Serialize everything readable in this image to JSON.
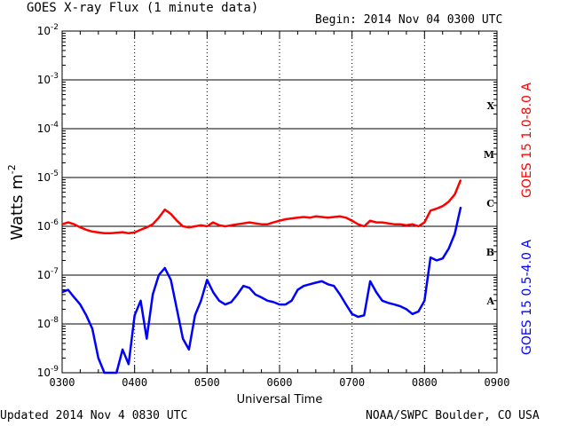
{
  "header": {
    "title": "GOES X-ray Flux (1 minute data)",
    "begin": "Begin: 2014 Nov 04 0300 UTC"
  },
  "footer": {
    "updated": "Updated 2014 Nov  4 0830 UTC",
    "credit": "NOAA/SWPC Boulder, CO USA"
  },
  "chart_data": {
    "type": "line",
    "title": "GOES X-ray Flux (1 minute data)",
    "xlabel": "Universal Time",
    "ylabel": "Watts m",
    "ylabel_sup": "-2",
    "xticks": [
      "0300",
      "0400",
      "0500",
      "0600",
      "0700",
      "0800",
      "0900"
    ],
    "x_range_hours": [
      3,
      9
    ],
    "yticks": [
      {
        "mant": "10",
        "exp": "-2",
        "value": 0.01
      },
      {
        "mant": "10",
        "exp": "-3",
        "value": 0.001
      },
      {
        "mant": "10",
        "exp": "-4",
        "value": 0.0001
      },
      {
        "mant": "10",
        "exp": "-5",
        "value": 1e-05
      },
      {
        "mant": "10",
        "exp": "-6",
        "value": 1e-06
      },
      {
        "mant": "10",
        "exp": "-7",
        "value": 1e-07
      },
      {
        "mant": "10",
        "exp": "-8",
        "value": 1e-08
      },
      {
        "mant": "10",
        "exp": "-9",
        "value": 1e-09
      }
    ],
    "ylim": [
      1e-09,
      0.01
    ],
    "yscale": "log",
    "flare_classes": [
      {
        "label": "X",
        "value": 0.0003
      },
      {
        "label": "M",
        "value": 3e-05
      },
      {
        "label": "C",
        "value": 3e-06
      },
      {
        "label": "B",
        "value": 3e-07
      },
      {
        "label": "A",
        "value": 3e-08
      }
    ],
    "series": [
      {
        "name": "GOES 15 1.0-8.0 A",
        "color": "#ff0000",
        "x": [
          "03:00",
          "03:05",
          "03:10",
          "03:15",
          "03:20",
          "03:25",
          "03:30",
          "03:35",
          "03:40",
          "03:45",
          "03:50",
          "03:55",
          "04:00",
          "04:05",
          "04:10",
          "04:15",
          "04:20",
          "04:25",
          "04:30",
          "04:35",
          "04:40",
          "04:45",
          "04:50",
          "04:55",
          "05:00",
          "05:05",
          "05:10",
          "05:15",
          "05:20",
          "05:25",
          "05:30",
          "05:35",
          "05:40",
          "05:45",
          "05:50",
          "05:55",
          "06:00",
          "06:05",
          "06:10",
          "06:15",
          "06:20",
          "06:25",
          "06:30",
          "06:35",
          "06:40",
          "06:45",
          "06:50",
          "06:55",
          "07:00",
          "07:05",
          "07:10",
          "07:15",
          "07:20",
          "07:25",
          "07:30",
          "07:35",
          "07:40",
          "07:45",
          "07:50",
          "07:55",
          "08:00",
          "08:05",
          "08:10",
          "08:15",
          "08:20",
          "08:25",
          "08:30"
        ],
        "y": [
          1.1e-06,
          1.2e-06,
          1.1e-06,
          9.5e-07,
          8.5e-07,
          7.8e-07,
          7.5e-07,
          7.2e-07,
          7.2e-07,
          7.4e-07,
          7.6e-07,
          7.2e-07,
          7.5e-07,
          8.5e-07,
          9.5e-07,
          1.1e-06,
          1.5e-06,
          2.2e-06,
          1.8e-06,
          1.3e-06,
          1e-06,
          9.5e-07,
          1e-06,
          1.05e-06,
          1e-06,
          1.2e-06,
          1.05e-06,
          1e-06,
          1.05e-06,
          1.1e-06,
          1.15e-06,
          1.2e-06,
          1.15e-06,
          1.1e-06,
          1.1e-06,
          1.2e-06,
          1.3e-06,
          1.4e-06,
          1.45e-06,
          1.5e-06,
          1.55e-06,
          1.5e-06,
          1.6e-06,
          1.55e-06,
          1.5e-06,
          1.55e-06,
          1.6e-06,
          1.5e-06,
          1.3e-06,
          1.1e-06,
          1e-06,
          1.3e-06,
          1.2e-06,
          1.2e-06,
          1.15e-06,
          1.1e-06,
          1.1e-06,
          1.05e-06,
          1.1e-06,
          1e-06,
          1.2e-06,
          2.1e-06,
          2.3e-06,
          2.6e-06,
          3.2e-06,
          4.5e-06,
          9e-06
        ]
      },
      {
        "name": "GOES 15 0.5-4.0 A",
        "color": "#0000ff",
        "x": [
          "03:00",
          "03:05",
          "03:10",
          "03:15",
          "03:20",
          "03:25",
          "03:30",
          "03:35",
          "03:40",
          "03:45",
          "03:50",
          "03:55",
          "04:00",
          "04:05",
          "04:10",
          "04:15",
          "04:20",
          "04:25",
          "04:30",
          "04:35",
          "04:40",
          "04:45",
          "04:50",
          "04:55",
          "05:00",
          "05:05",
          "05:10",
          "05:15",
          "05:20",
          "05:25",
          "05:30",
          "05:35",
          "05:40",
          "05:45",
          "05:50",
          "05:55",
          "06:00",
          "06:05",
          "06:10",
          "06:15",
          "06:20",
          "06:25",
          "06:30",
          "06:35",
          "06:40",
          "06:45",
          "06:50",
          "06:55",
          "07:00",
          "07:05",
          "07:10",
          "07:15",
          "07:20",
          "07:25",
          "07:30",
          "07:35",
          "07:40",
          "07:45",
          "07:50",
          "07:55",
          "08:00",
          "08:05",
          "08:10",
          "08:15",
          "08:20",
          "08:25",
          "08:30"
        ],
        "y": [
          4.5e-08,
          5e-08,
          3.5e-08,
          2.5e-08,
          1.5e-08,
          8e-09,
          2e-09,
          1e-09,
          1e-09,
          1e-09,
          3e-09,
          1.5e-09,
          1.5e-08,
          3e-08,
          5e-09,
          4e-08,
          1e-07,
          1.4e-07,
          8e-08,
          2e-08,
          5e-09,
          3e-09,
          1.5e-08,
          3e-08,
          8e-08,
          4.5e-08,
          3e-08,
          2.5e-08,
          2.8e-08,
          4e-08,
          6e-08,
          5.5e-08,
          4e-08,
          3.5e-08,
          3e-08,
          2.8e-08,
          2.5e-08,
          2.5e-08,
          3e-08,
          5e-08,
          6e-08,
          6.5e-08,
          7e-08,
          7.5e-08,
          6.5e-08,
          6e-08,
          4e-08,
          2.5e-08,
          1.6e-08,
          1.4e-08,
          1.5e-08,
          7.5e-08,
          4.5e-08,
          3e-08,
          2.7e-08,
          2.5e-08,
          2.3e-08,
          2e-08,
          1.6e-08,
          1.8e-08,
          3e-08,
          2.3e-07,
          2e-07,
          2.2e-07,
          3.5e-07,
          7e-07,
          2.5e-06
        ]
      }
    ]
  }
}
